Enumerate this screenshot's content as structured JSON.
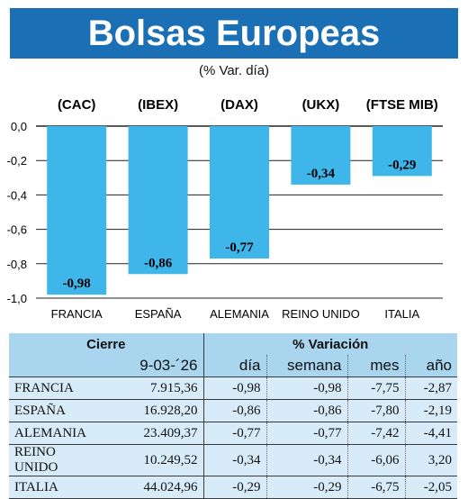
{
  "header": {
    "title": "Bolsas Europeas",
    "subtitle": "(% Var. día)"
  },
  "chart_data": {
    "type": "bar",
    "categories": [
      "FRANCIA",
      "ESPAÑA",
      "ALEMANIA",
      "REINO UNIDO",
      "ITALIA"
    ],
    "index_labels": [
      "(CAC)",
      "(IBEX)",
      "(DAX)",
      "(UKX)",
      "(FTSE MIB)"
    ],
    "values": [
      -0.98,
      -0.86,
      -0.77,
      -0.34,
      -0.29
    ],
    "value_labels": [
      "-0,98",
      "-0,86",
      "-0,77",
      "-0,34",
      "-0,29"
    ],
    "yticks": [
      "0,0",
      "-0,2",
      "-0,4",
      "-0,6",
      "-0,8",
      "-1,0"
    ],
    "ylim": [
      -1.0,
      0.0
    ],
    "grid": true,
    "bar_color": "#3fb6ea"
  },
  "table": {
    "group_headers": [
      "Cierre",
      "% Variación"
    ],
    "columns": [
      "9-03-´26",
      "día",
      "semana",
      "mes",
      "año"
    ],
    "rows": [
      {
        "name": "FRANCIA",
        "cierre": "7.915,36",
        "dia": "-0,98",
        "semana": "-0,98",
        "mes": "-7,75",
        "anio": "-2,87"
      },
      {
        "name": "ESPAÑA",
        "cierre": "16.928,20",
        "dia": "-0,86",
        "semana": "-0,86",
        "mes": "-7,80",
        "anio": "-2,19"
      },
      {
        "name": "ALEMANIA",
        "cierre": "23.409,37",
        "dia": "-0,77",
        "semana": "-0,77",
        "mes": "-7,42",
        "anio": "-4,41"
      },
      {
        "name": "REINO UNIDO",
        "cierre": "10.249,52",
        "dia": "-0,34",
        "semana": "-0,34",
        "mes": "-6,06",
        "anio": "3,20"
      },
      {
        "name": "ITALIA",
        "cierre": "44.024,96",
        "dia": "-0,29",
        "semana": "-0,29",
        "mes": "-6,75",
        "anio": "-2,05"
      }
    ]
  }
}
